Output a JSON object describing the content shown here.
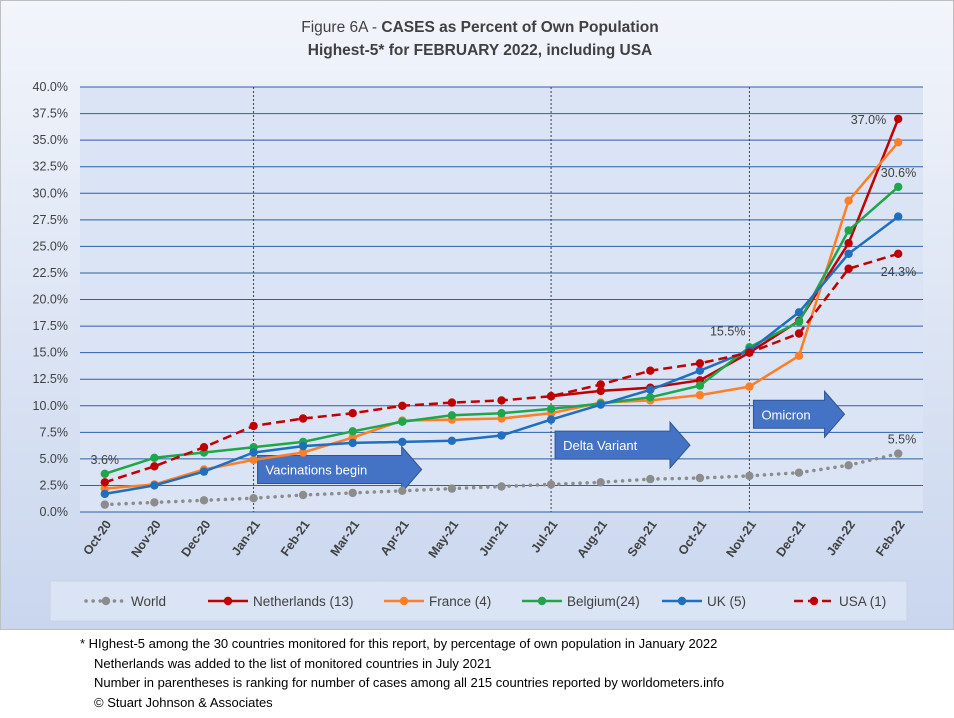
{
  "chart_data": {
    "type": "line",
    "title_prefix": "Figure 6A - ",
    "title_bold": "CASES as Percent of Own Population",
    "subtitle": "Highest-5* for FEBRUARY 2022, including USA",
    "categories": [
      "Oct-20",
      "Nov-20",
      "Dec-20",
      "Jan-21",
      "Feb-21",
      "Mar-21",
      "Apr-21",
      "May-21",
      "Jun-21",
      "Jul-21",
      "Aug-21",
      "Sep-21",
      "Oct-21",
      "Nov-21",
      "Dec-21",
      "Jan-22",
      "Feb-22"
    ],
    "y_ticks": [
      "0.0%",
      "2.5%",
      "5.0%",
      "7.5%",
      "10.0%",
      "12.5%",
      "15.0%",
      "17.5%",
      "20.0%",
      "22.5%",
      "25.0%",
      "27.5%",
      "30.0%",
      "32.5%",
      "35.0%",
      "37.5%",
      "40.0%"
    ],
    "ylim": [
      0,
      40
    ],
    "grid": true,
    "legend_position": "bottom",
    "series": [
      {
        "name": "World",
        "color": "#8c8c8c",
        "style": "dotted",
        "values": [
          0.7,
          0.9,
          1.1,
          1.3,
          1.6,
          1.8,
          2.0,
          2.2,
          2.4,
          2.6,
          2.8,
          3.1,
          3.2,
          3.4,
          3.7,
          4.4,
          5.5
        ]
      },
      {
        "name": "Netherlands (13)",
        "color": "#c00000",
        "style": "solid",
        "values": [
          null,
          null,
          null,
          null,
          null,
          null,
          null,
          null,
          null,
          10.9,
          11.4,
          11.7,
          12.4,
          15.0,
          18.0,
          25.3,
          37.0
        ]
      },
      {
        "name": "France (4)",
        "color": "#ff7f27",
        "style": "solid",
        "values": [
          2.2,
          2.6,
          4.0,
          4.9,
          5.6,
          7.0,
          8.6,
          8.7,
          8.8,
          9.3,
          10.3,
          10.5,
          11.0,
          11.8,
          14.7,
          29.3,
          34.8
        ]
      },
      {
        "name": "Belgium(24)",
        "color": "#1fa64a",
        "style": "solid",
        "values": [
          3.6,
          5.1,
          5.6,
          6.1,
          6.6,
          7.6,
          8.5,
          9.1,
          9.3,
          9.7,
          10.2,
          10.8,
          11.9,
          15.5,
          17.9,
          26.5,
          30.6
        ]
      },
      {
        "name": "UK (5)",
        "color": "#1f6fbf",
        "style": "solid",
        "values": [
          1.7,
          2.5,
          3.8,
          5.6,
          6.2,
          6.5,
          6.6,
          6.7,
          7.2,
          8.7,
          10.1,
          11.5,
          13.3,
          15.2,
          18.8,
          24.3,
          27.8
        ]
      },
      {
        "name": "USA (1)",
        "color": "#c00000",
        "style": "dashed",
        "values": [
          2.8,
          4.3,
          6.1,
          8.1,
          8.8,
          9.3,
          10.0,
          10.3,
          10.5,
          10.9,
          12.0,
          13.3,
          14.0,
          15.0,
          16.8,
          22.9,
          24.3
        ]
      }
    ],
    "data_labels": [
      {
        "text": "3.6%",
        "series": 3,
        "index": 0
      },
      {
        "text": "15.5%",
        "series": 3,
        "index": 13
      },
      {
        "text": "37.0%",
        "series": 1,
        "index": 16
      },
      {
        "text": "30.6%",
        "series": 3,
        "index": 16
      },
      {
        "text": "24.3%",
        "series": 5,
        "index": 16
      },
      {
        "text": "5.5%",
        "series": 0,
        "index": 16
      }
    ],
    "vertical_markers": [
      "Jan-21",
      "Jul-21",
      "Nov-21"
    ],
    "annotations": [
      {
        "text": "Vacinations begin",
        "at": "Jan-21",
        "level": 4.0
      },
      {
        "text": "Delta Variant",
        "at": "Jul-21",
        "level": 6.3
      },
      {
        "text": "Omicron",
        "at": "Nov-21",
        "level": 9.2
      }
    ],
    "colors": {
      "plot_bg": "#dbe4f4",
      "grid": "#2e5fa8",
      "axis_text": "#404040",
      "arrow": "#4472c4",
      "arrow_border": "#2f5597"
    }
  },
  "footnotes": [
    "* HIghest-5 among the 30 countries monitored for this report, by percentage of own population in January 2022",
    "Netherlands was added to the list of monitored countries in July 2021",
    "Number in parentheses is ranking for number of cases among all 215 countries reported by worldometers.info",
    "© Stuart Johnson & Associates"
  ]
}
